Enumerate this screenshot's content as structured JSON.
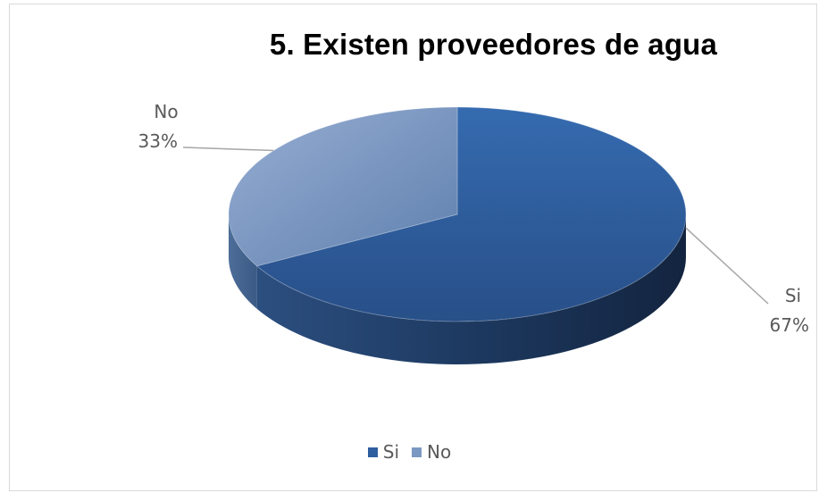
{
  "chart_data": {
    "type": "pie",
    "title": "5.  Existen proveedores de agua",
    "categories": [
      "Si",
      "No"
    ],
    "values": [
      67,
      33
    ],
    "data_labels": [
      {
        "category": "Si",
        "percent": "67%"
      },
      {
        "category": "No",
        "percent": "33%"
      }
    ],
    "colors": {
      "Si": "#2e5e9e",
      "No": "#7b98c2"
    },
    "legend_position": "bottom",
    "style": "3d"
  }
}
